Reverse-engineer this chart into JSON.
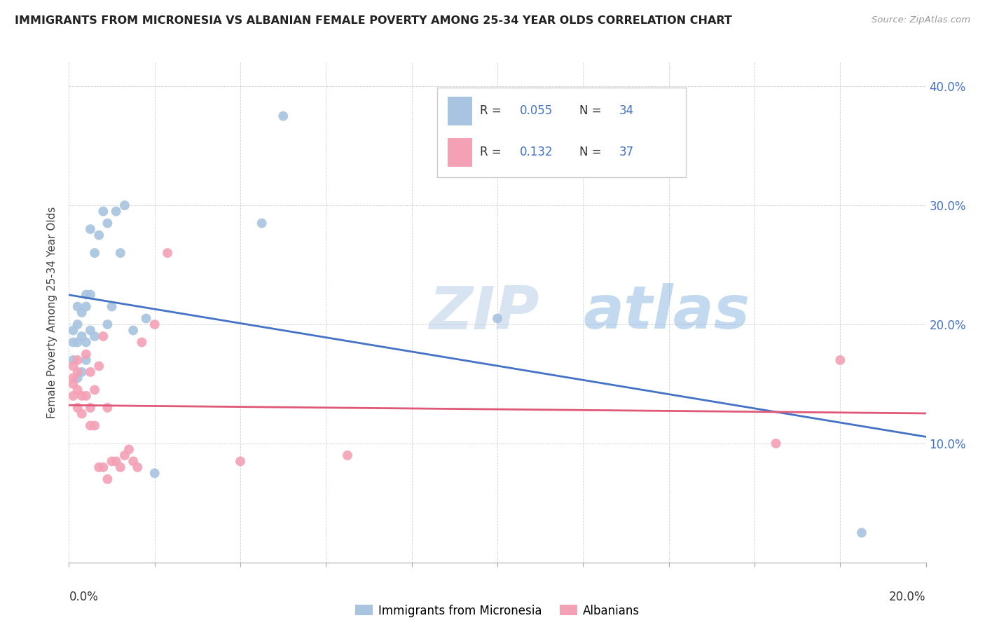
{
  "title": "IMMIGRANTS FROM MICRONESIA VS ALBANIAN FEMALE POVERTY AMONG 25-34 YEAR OLDS CORRELATION CHART",
  "source": "Source: ZipAtlas.com",
  "ylabel": "Female Poverty Among 25-34 Year Olds",
  "xlim": [
    0.0,
    0.2
  ],
  "ylim": [
    0.0,
    0.42
  ],
  "yticks": [
    0.0,
    0.1,
    0.2,
    0.3,
    0.4
  ],
  "ytick_labels": [
    "",
    "10.0%",
    "20.0%",
    "30.0%",
    "40.0%"
  ],
  "micronesia_color": "#a8c4e0",
  "albanian_color": "#f4a0b5",
  "micronesia_line_color": "#4472c4",
  "albanian_line_color": "#e05878",
  "legend_R_color": "#4472c4",
  "micronesia_R": "0.055",
  "micronesia_N": "34",
  "albanian_R": "0.132",
  "albanian_N": "37",
  "watermark_text": "ZIP",
  "watermark_text2": "atlas",
  "background_color": "#ffffff",
  "grid_color": "#d0d0d0",
  "micronesia_x": [
    0.001,
    0.001,
    0.001,
    0.002,
    0.002,
    0.002,
    0.002,
    0.003,
    0.003,
    0.003,
    0.004,
    0.004,
    0.004,
    0.004,
    0.005,
    0.005,
    0.005,
    0.006,
    0.006,
    0.007,
    0.008,
    0.009,
    0.009,
    0.01,
    0.011,
    0.012,
    0.013,
    0.015,
    0.018,
    0.02,
    0.045,
    0.05,
    0.1,
    0.185
  ],
  "micronesia_y": [
    0.17,
    0.185,
    0.195,
    0.155,
    0.185,
    0.2,
    0.215,
    0.16,
    0.19,
    0.21,
    0.17,
    0.185,
    0.215,
    0.225,
    0.195,
    0.225,
    0.28,
    0.19,
    0.26,
    0.275,
    0.295,
    0.2,
    0.285,
    0.215,
    0.295,
    0.26,
    0.3,
    0.195,
    0.205,
    0.075,
    0.285,
    0.375,
    0.205,
    0.025
  ],
  "albanian_x": [
    0.001,
    0.001,
    0.001,
    0.001,
    0.002,
    0.002,
    0.002,
    0.002,
    0.003,
    0.003,
    0.004,
    0.004,
    0.005,
    0.005,
    0.005,
    0.006,
    0.006,
    0.007,
    0.007,
    0.008,
    0.008,
    0.009,
    0.009,
    0.01,
    0.011,
    0.012,
    0.013,
    0.014,
    0.015,
    0.016,
    0.017,
    0.02,
    0.023,
    0.04,
    0.065,
    0.165,
    0.18
  ],
  "albanian_y": [
    0.14,
    0.15,
    0.155,
    0.165,
    0.13,
    0.145,
    0.16,
    0.17,
    0.125,
    0.14,
    0.14,
    0.175,
    0.115,
    0.13,
    0.16,
    0.115,
    0.145,
    0.08,
    0.165,
    0.08,
    0.19,
    0.07,
    0.13,
    0.085,
    0.085,
    0.08,
    0.09,
    0.095,
    0.085,
    0.08,
    0.185,
    0.2,
    0.26,
    0.085,
    0.09,
    0.1,
    0.17
  ]
}
